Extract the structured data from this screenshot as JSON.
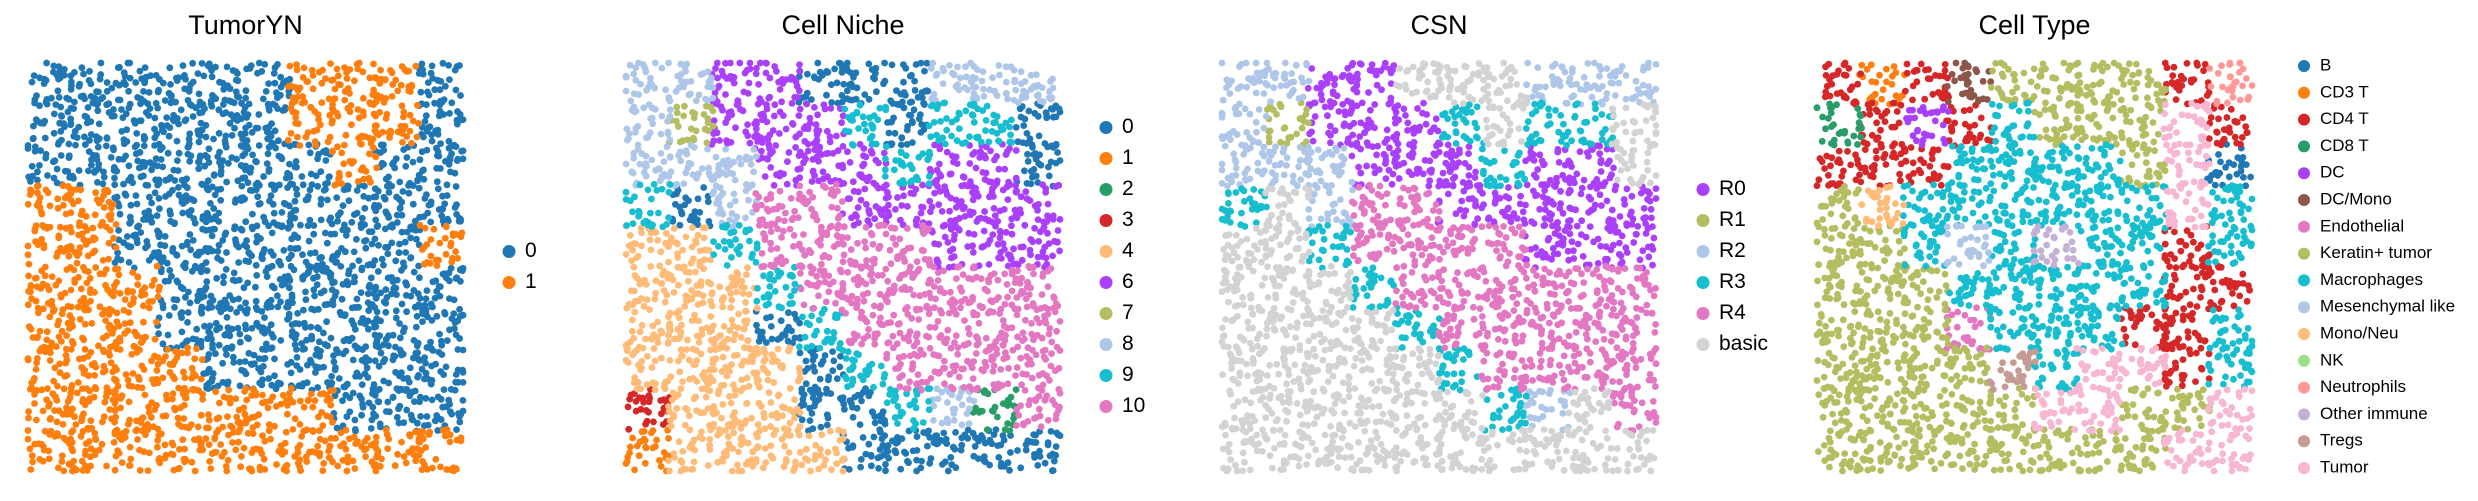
{
  "chart_data": [
    {
      "type": "scatter",
      "title": "TumorYN",
      "xlim": [
        0,
        100
      ],
      "ylim": [
        0,
        100
      ],
      "series": [
        {
          "name": "0",
          "color": "#1f77b4",
          "x": [
            5,
            15,
            25,
            35,
            45,
            55,
            95,
            5,
            15,
            25,
            35,
            45,
            55,
            95,
            5,
            15,
            25,
            35,
            45,
            55,
            65,
            85,
            95,
            25,
            35,
            45,
            55,
            65,
            75,
            85,
            95,
            25,
            35,
            45,
            55,
            65,
            75,
            85,
            35,
            45,
            55,
            65,
            75,
            85,
            95,
            35,
            45,
            55,
            65,
            75,
            85,
            95,
            45,
            55,
            65,
            75,
            85,
            95,
            75,
            85,
            95
          ],
          "y": [
            95,
            95,
            95,
            95,
            95,
            95,
            95,
            85,
            85,
            85,
            85,
            85,
            85,
            85,
            75,
            75,
            75,
            75,
            75,
            75,
            75,
            75,
            75,
            65,
            65,
            65,
            65,
            65,
            65,
            65,
            65,
            55,
            55,
            55,
            55,
            55,
            55,
            55,
            45,
            45,
            45,
            45,
            45,
            45,
            45,
            35,
            35,
            35,
            35,
            35,
            35,
            35,
            25,
            25,
            25,
            25,
            25,
            25,
            15,
            15,
            15
          ]
        },
        {
          "name": "1",
          "color": "#ff7f0e",
          "x": [
            65,
            75,
            85,
            65,
            75,
            85,
            75,
            5,
            15,
            5,
            15,
            95,
            5,
            15,
            25,
            5,
            15,
            25,
            5,
            15,
            25,
            35,
            5,
            15,
            25,
            35,
            45,
            55,
            65,
            5,
            15,
            25,
            35,
            45,
            55,
            65,
            75,
            85,
            95
          ],
          "y": [
            95,
            95,
            95,
            85,
            85,
            85,
            75,
            65,
            65,
            55,
            55,
            55,
            45,
            45,
            45,
            35,
            35,
            35,
            25,
            25,
            25,
            25,
            15,
            15,
            15,
            15,
            15,
            15,
            15,
            5,
            5,
            5,
            5,
            5,
            5,
            5,
            5,
            5,
            5
          ]
        }
      ]
    },
    {
      "type": "scatter",
      "title": "Cell Niche",
      "xlim": [
        0,
        100
      ],
      "ylim": [
        0,
        100
      ],
      "series": [
        {
          "name": "0",
          "color": "#1f77b4",
          "x": [
            45,
            55,
            65,
            65,
            95,
            95,
            15,
            35,
            45,
            45,
            55,
            55,
            65,
            75,
            85,
            95
          ],
          "y": [
            95,
            95,
            95,
            85,
            85,
            75,
            65,
            35,
            25,
            15,
            15,
            5,
            5,
            5,
            5,
            5
          ]
        },
        {
          "name": "1",
          "color": "#ff7f0e",
          "x": [
            5
          ],
          "y": [
            5
          ]
        },
        {
          "name": "2",
          "color": "#279e68",
          "x": [
            85
          ],
          "y": [
            15
          ]
        },
        {
          "name": "3",
          "color": "#d62728",
          "x": [
            5
          ],
          "y": [
            15
          ]
        },
        {
          "name": "4",
          "color": "#ffbb78",
          "x": [
            5,
            15,
            5,
            15,
            25,
            5,
            15,
            25,
            5,
            15,
            25,
            35,
            15,
            25,
            35,
            15,
            25,
            35,
            45
          ],
          "y": [
            55,
            55,
            45,
            45,
            45,
            35,
            35,
            35,
            25,
            25,
            25,
            25,
            15,
            15,
            15,
            5,
            5,
            5,
            5
          ]
        },
        {
          "name": "6",
          "color": "#aa40fc",
          "x": [
            25,
            35,
            25,
            35,
            45,
            35,
            45,
            55,
            75,
            85,
            55,
            65,
            75,
            85,
            95,
            75,
            85,
            95
          ],
          "y": [
            95,
            95,
            85,
            85,
            85,
            75,
            75,
            75,
            75,
            75,
            65,
            65,
            65,
            65,
            65,
            55,
            55,
            55
          ]
        },
        {
          "name": "7",
          "color": "#b5bd61",
          "x": [
            15
          ],
          "y": [
            85
          ]
        },
        {
          "name": "8",
          "color": "#aec7e8",
          "x": [
            5,
            15,
            75,
            85,
            95,
            5,
            5,
            15,
            25,
            25,
            75
          ],
          "y": [
            95,
            95,
            95,
            95,
            95,
            85,
            75,
            75,
            75,
            65,
            15
          ]
        },
        {
          "name": "9",
          "color": "#17becf",
          "x": [
            55,
            75,
            85,
            65,
            5,
            25,
            35,
            45,
            55,
            65
          ],
          "y": [
            85,
            85,
            85,
            75,
            65,
            55,
            45,
            35,
            25,
            15
          ]
        },
        {
          "name": "10",
          "color": "#e377c2",
          "x": [
            35,
            45,
            35,
            45,
            55,
            65,
            45,
            55,
            65,
            75,
            85,
            95,
            55,
            65,
            75,
            85,
            95,
            65,
            75,
            85,
            95,
            95
          ],
          "y": [
            65,
            65,
            55,
            55,
            55,
            55,
            45,
            45,
            45,
            45,
            45,
            45,
            35,
            35,
            35,
            35,
            35,
            25,
            25,
            25,
            25,
            15
          ]
        }
      ]
    },
    {
      "type": "scatter",
      "title": "CSN",
      "xlim": [
        0,
        100
      ],
      "ylim": [
        0,
        100
      ],
      "series": [
        {
          "name": "R0",
          "color": "#aa40fc",
          "x": [
            25,
            35,
            25,
            35,
            45,
            35,
            45,
            55,
            75,
            85,
            55,
            65,
            75,
            85,
            95,
            75,
            85,
            95
          ],
          "y": [
            95,
            95,
            85,
            85,
            85,
            75,
            75,
            75,
            75,
            75,
            65,
            65,
            65,
            65,
            65,
            55,
            55,
            55
          ]
        },
        {
          "name": "R1",
          "color": "#b5bd61",
          "x": [
            15
          ],
          "y": [
            85
          ]
        },
        {
          "name": "R2",
          "color": "#aec7e8",
          "x": [
            5,
            15,
            75,
            85,
            95,
            5,
            5,
            15,
            25,
            25,
            75
          ],
          "y": [
            95,
            95,
            95,
            95,
            95,
            85,
            75,
            75,
            75,
            65,
            15
          ]
        },
        {
          "name": "R3",
          "color": "#17becf",
          "x": [
            55,
            75,
            85,
            65,
            5,
            25,
            35,
            45,
            55,
            65
          ],
          "y": [
            85,
            85,
            85,
            75,
            65,
            55,
            45,
            35,
            25,
            15
          ]
        },
        {
          "name": "R4",
          "color": "#e377c2",
          "x": [
            35,
            45,
            35,
            45,
            55,
            65,
            45,
            55,
            65,
            75,
            85,
            95,
            55,
            65,
            75,
            85,
            95,
            65,
            75,
            85,
            95,
            95
          ],
          "y": [
            65,
            65,
            55,
            55,
            55,
            55,
            45,
            45,
            45,
            45,
            45,
            45,
            35,
            35,
            35,
            35,
            35,
            25,
            25,
            25,
            25,
            15
          ]
        },
        {
          "name": "basic",
          "color": "#d3d3d3",
          "x": [
            45,
            55,
            65,
            65,
            95,
            95,
            15,
            35,
            45,
            45,
            55,
            55,
            65,
            75,
            85,
            95,
            5,
            85,
            5,
            5,
            15,
            5,
            15,
            25,
            5,
            15,
            25,
            5,
            15,
            25,
            35,
            15,
            25,
            35,
            15,
            25,
            35,
            45
          ],
          "y": [
            95,
            95,
            95,
            85,
            85,
            75,
            65,
            35,
            25,
            15,
            15,
            5,
            5,
            5,
            5,
            5,
            5,
            15,
            15,
            55,
            55,
            45,
            45,
            45,
            35,
            35,
            35,
            25,
            25,
            25,
            25,
            15,
            15,
            15,
            5,
            5,
            5,
            5
          ]
        }
      ]
    },
    {
      "type": "scatter",
      "title": "Cell Type",
      "xlim": [
        0,
        100
      ],
      "ylim": [
        0,
        100
      ],
      "series": [
        {
          "name": "B",
          "color": "#1f77b4",
          "x": [
            95
          ],
          "y": [
            75
          ]
        },
        {
          "name": "CD3 T",
          "color": "#ff7f0e",
          "x": [
            15
          ],
          "y": [
            95
          ]
        },
        {
          "name": "CD4 T",
          "color": "#d62728",
          "x": [
            5,
            25,
            85,
            15,
            35,
            95,
            5,
            15,
            25,
            85,
            85,
            95,
            75,
            85,
            85
          ],
          "y": [
            95,
            95,
            95,
            85,
            85,
            85,
            75,
            75,
            75,
            55,
            45,
            45,
            35,
            35,
            25
          ]
        },
        {
          "name": "CD8 T",
          "color": "#279e68",
          "x": [
            5
          ],
          "y": [
            85
          ]
        },
        {
          "name": "DC",
          "color": "#aa40fc",
          "x": [
            25
          ],
          "y": [
            85
          ]
        },
        {
          "name": "DC/Mono",
          "color": "#8c564b",
          "x": [
            35
          ],
          "y": [
            95
          ]
        },
        {
          "name": "Endothelial",
          "color": "#e377c2",
          "x": [
            35
          ],
          "y": [
            35
          ]
        },
        {
          "name": "Keratin+ tumor",
          "color": "#b5bd61",
          "x": [
            45,
            55,
            65,
            75,
            55,
            65,
            75,
            75,
            5,
            5,
            15,
            5,
            15,
            25,
            5,
            15,
            25,
            5,
            15,
            25,
            35,
            5,
            15,
            25,
            35,
            45,
            75,
            85,
            5,
            15,
            25,
            35,
            45,
            55,
            65,
            75
          ],
          "y": [
            95,
            95,
            95,
            95,
            85,
            85,
            85,
            75,
            65,
            55,
            55,
            45,
            45,
            45,
            35,
            35,
            35,
            25,
            25,
            25,
            25,
            15,
            15,
            15,
            15,
            15,
            15,
            15,
            5,
            5,
            5,
            5,
            5,
            5,
            5,
            5
          ]
        },
        {
          "name": "Macrophages",
          "color": "#17becf",
          "x": [
            45,
            35,
            45,
            55,
            65,
            25,
            35,
            45,
            55,
            65,
            75,
            95,
            25,
            45,
            65,
            75,
            95,
            35,
            45,
            55,
            65,
            75,
            45,
            55,
            65,
            95,
            55,
            95
          ],
          "y": [
            85,
            75,
            75,
            75,
            75,
            65,
            65,
            65,
            65,
            65,
            65,
            65,
            55,
            55,
            55,
            55,
            55,
            45,
            45,
            45,
            45,
            45,
            35,
            35,
            35,
            35,
            25,
            25
          ]
        },
        {
          "name": "Mesenchymal like",
          "color": "#aec7e8",
          "x": [
            35
          ],
          "y": [
            55
          ]
        },
        {
          "name": "Mono/Neu",
          "color": "#ffbb78",
          "x": [
            15
          ],
          "y": [
            65
          ]
        },
        {
          "name": "NK",
          "color": "#98df8a",
          "x": [],
          "y": []
        },
        {
          "name": "Neutrophils",
          "color": "#ff9896",
          "x": [
            95
          ],
          "y": [
            95
          ]
        },
        {
          "name": "Other immune",
          "color": "#c5b0d5",
          "x": [
            55
          ],
          "y": [
            55
          ]
        },
        {
          "name": "Tregs",
          "color": "#c49c94",
          "x": [
            45
          ],
          "y": [
            25
          ]
        },
        {
          "name": "Tumor",
          "color": "#f7b6d2",
          "x": [
            85,
            85,
            85,
            65,
            75,
            55,
            65,
            95,
            85,
            95
          ],
          "y": [
            85,
            75,
            65,
            25,
            25,
            15,
            15,
            15,
            5,
            5
          ]
        }
      ]
    }
  ]
}
